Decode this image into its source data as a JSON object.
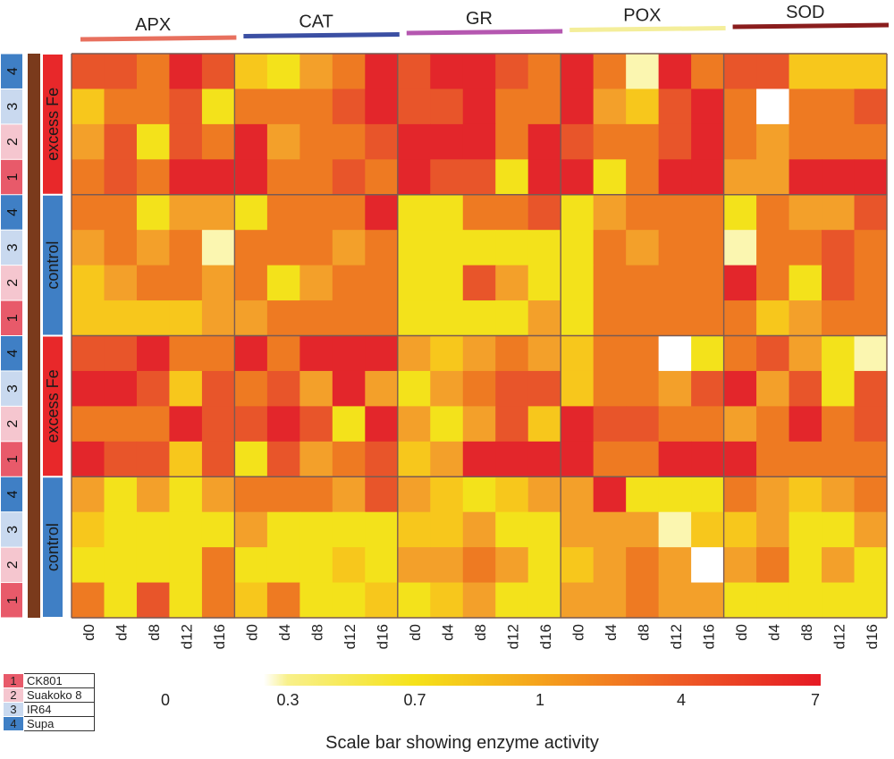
{
  "chart_data": {
    "type": "heatmap",
    "enzymes": [
      {
        "name": "APX",
        "color": "#e8705e"
      },
      {
        "name": "CAT",
        "color": "#3b4fa3"
      },
      {
        "name": "GR",
        "color": "#b557b0"
      },
      {
        "name": "POX",
        "color": "#f4ee9a"
      },
      {
        "name": "SOD",
        "color": "#8a1d1d"
      }
    ],
    "days": [
      "d0",
      "d4",
      "d8",
      "d12",
      "d16"
    ],
    "blocks": [
      {
        "label": "excess Fe",
        "color": "#e8282a"
      },
      {
        "label": "control",
        "color": "#3f7fc5"
      },
      {
        "label": "excess Fe",
        "color": "#e8282a"
      },
      {
        "label": "control",
        "color": "#3f7fc5"
      }
    ],
    "row_labels": [
      "4",
      "3",
      "2",
      "1"
    ],
    "cultivars": [
      {
        "num": "1",
        "name": "CK801",
        "color": "#e85a6a"
      },
      {
        "num": "2",
        "name": "Suakoko 8",
        "color": "#f5c6cf"
      },
      {
        "num": "3",
        "name": "IR64",
        "color": "#c9d9ef"
      },
      {
        "num": "4",
        "name": "Supa",
        "color": "#3f7fc5"
      }
    ],
    "colorbar": {
      "ticks": [
        "0",
        "0.3",
        "0.7",
        "1",
        "4",
        "7"
      ],
      "stops": [
        "#ffffff",
        "#f8f08a",
        "#f5e21a",
        "#f5a21c",
        "#ee5a25",
        "#e61c24"
      ],
      "caption": "Scale bar showing enzyme activity"
    },
    "level_colors": [
      "#ffffff",
      "#fbf6b0",
      "#f3e21b",
      "#f7c71c",
      "#f3a02a",
      "#ee7a22",
      "#e8552a",
      "#e3262b"
    ],
    "values": [
      [
        6,
        6,
        5,
        7,
        6,
        3,
        2,
        4,
        5,
        7,
        6,
        7,
        7,
        6,
        5,
        7,
        5,
        1,
        7,
        5,
        6,
        6,
        3,
        3,
        3
      ],
      [
        3,
        5,
        5,
        6,
        2,
        5,
        5,
        5,
        6,
        7,
        6,
        6,
        7,
        5,
        5,
        7,
        4,
        3,
        6,
        7,
        5,
        0,
        5,
        5,
        6
      ],
      [
        4,
        6,
        2,
        6,
        5,
        7,
        4,
        5,
        5,
        6,
        7,
        7,
        7,
        5,
        7,
        6,
        5,
        5,
        6,
        7,
        5,
        4,
        5,
        5,
        5
      ],
      [
        5,
        6,
        5,
        7,
        7,
        7,
        5,
        5,
        6,
        5,
        7,
        6,
        6,
        2,
        7,
        7,
        2,
        5,
        7,
        7,
        4,
        4,
        7,
        7,
        7
      ],
      [
        5,
        5,
        2,
        4,
        4,
        2,
        5,
        5,
        5,
        7,
        2,
        2,
        5,
        5,
        6,
        2,
        4,
        5,
        5,
        5,
        2,
        5,
        4,
        4,
        6
      ],
      [
        4,
        5,
        4,
        5,
        1,
        5,
        5,
        5,
        4,
        5,
        2,
        2,
        2,
        2,
        2,
        2,
        5,
        4,
        5,
        5,
        1,
        5,
        5,
        6,
        5
      ],
      [
        3,
        4,
        5,
        5,
        4,
        5,
        2,
        4,
        5,
        5,
        2,
        2,
        6,
        4,
        2,
        2,
        5,
        5,
        5,
        5,
        7,
        5,
        2,
        6,
        5
      ],
      [
        3,
        3,
        3,
        3,
        4,
        4,
        5,
        5,
        5,
        5,
        2,
        2,
        2,
        2,
        4,
        2,
        5,
        5,
        5,
        5,
        5,
        3,
        4,
        5,
        5
      ],
      [
        6,
        6,
        7,
        5,
        5,
        7,
        5,
        7,
        7,
        7,
        4,
        3,
        4,
        5,
        4,
        3,
        5,
        5,
        0,
        2,
        5,
        6,
        4,
        2,
        1
      ],
      [
        7,
        7,
        6,
        3,
        6,
        5,
        6,
        4,
        7,
        4,
        2,
        4,
        5,
        6,
        6,
        3,
        5,
        5,
        4,
        6,
        7,
        4,
        6,
        2,
        6
      ],
      [
        5,
        5,
        5,
        7,
        6,
        6,
        7,
        6,
        2,
        7,
        4,
        2,
        4,
        6,
        3,
        7,
        6,
        6,
        5,
        5,
        4,
        5,
        7,
        5,
        6
      ],
      [
        7,
        6,
        6,
        3,
        6,
        2,
        6,
        4,
        5,
        6,
        3,
        4,
        7,
        7,
        7,
        7,
        5,
        5,
        7,
        7,
        7,
        5,
        5,
        5,
        5
      ],
      [
        4,
        2,
        4,
        2,
        4,
        5,
        5,
        5,
        4,
        6,
        4,
        3,
        2,
        3,
        4,
        4,
        7,
        2,
        2,
        2,
        5,
        4,
        3,
        4,
        5
      ],
      [
        3,
        2,
        2,
        2,
        2,
        4,
        2,
        2,
        2,
        2,
        3,
        3,
        4,
        2,
        2,
        4,
        4,
        4,
        1,
        3,
        3,
        4,
        2,
        2,
        4
      ],
      [
        2,
        2,
        2,
        2,
        5,
        2,
        2,
        2,
        3,
        2,
        4,
        4,
        5,
        4,
        2,
        3,
        4,
        5,
        4,
        0,
        4,
        5,
        2,
        4,
        2
      ],
      [
        5,
        2,
        6,
        2,
        5,
        3,
        5,
        2,
        2,
        3,
        2,
        3,
        4,
        2,
        2,
        4,
        4,
        5,
        4,
        4,
        2,
        2,
        2,
        2,
        2
      ]
    ]
  }
}
